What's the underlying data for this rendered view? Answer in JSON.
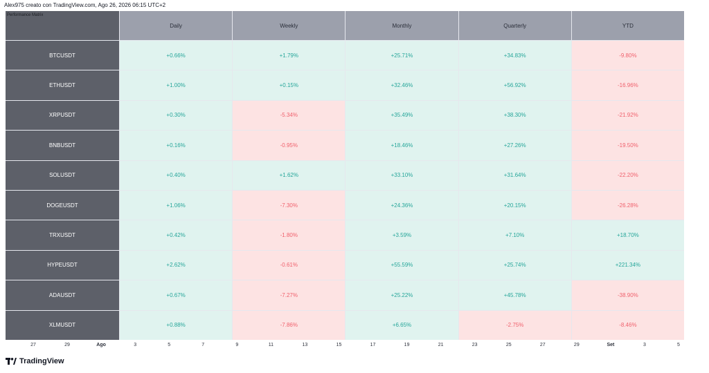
{
  "header": {
    "text": "Alex975 creato con TradingView.com, Ago 26, 2026 06:15 UTC+2"
  },
  "matrix": {
    "title": "Performance Matrix",
    "columns": [
      "Daily",
      "Weekly",
      "Monthly",
      "Quarterly",
      "YTD"
    ],
    "rows": [
      {
        "symbol": "BTCUSDT",
        "values": [
          "+0.66%",
          "+1.79%",
          "+25.71%",
          "+34.83%",
          "-9.80%"
        ]
      },
      {
        "symbol": "ETHUSDT",
        "values": [
          "+1.00%",
          "+0.15%",
          "+32.46%",
          "+56.92%",
          "-16.96%"
        ]
      },
      {
        "symbol": "XRPUSDT",
        "values": [
          "+0.30%",
          "-5.34%",
          "+35.49%",
          "+38.30%",
          "-21.92%"
        ]
      },
      {
        "symbol": "BNBUSDT",
        "values": [
          "+0.16%",
          "-0.95%",
          "+18.46%",
          "+27.26%",
          "-19.50%"
        ]
      },
      {
        "symbol": "SOLUSDT",
        "values": [
          "+0.40%",
          "+1.62%",
          "+33.10%",
          "+31.64%",
          "-22.20%"
        ]
      },
      {
        "symbol": "DOGEUSDT",
        "values": [
          "+1.06%",
          "-7.30%",
          "+24.36%",
          "+20.15%",
          "-26.28%"
        ]
      },
      {
        "symbol": "TRXUSDT",
        "values": [
          "+0.42%",
          "-1.80%",
          "+3.59%",
          "+7.10%",
          "+18.70%"
        ]
      },
      {
        "symbol": "HYPEUSDT",
        "values": [
          "+2.62%",
          "-0.61%",
          "+55.59%",
          "+25.74%",
          "+221.34%"
        ]
      },
      {
        "symbol": "ADAUSDT",
        "values": [
          "+0.67%",
          "-7.27%",
          "+25.22%",
          "+45.78%",
          "-38.90%"
        ]
      },
      {
        "symbol": "XLMUSDT",
        "values": [
          "+0.88%",
          "-7.86%",
          "+6.65%",
          "-2.75%",
          "-8.46%"
        ]
      }
    ]
  },
  "time_axis": {
    "ticks": [
      {
        "label": "27",
        "bold": false
      },
      {
        "label": "29",
        "bold": false
      },
      {
        "label": "Ago",
        "bold": true
      },
      {
        "label": "3",
        "bold": false
      },
      {
        "label": "5",
        "bold": false
      },
      {
        "label": "7",
        "bold": false
      },
      {
        "label": "9",
        "bold": false
      },
      {
        "label": "11",
        "bold": false
      },
      {
        "label": "13",
        "bold": false
      },
      {
        "label": "15",
        "bold": false
      },
      {
        "label": "17",
        "bold": false
      },
      {
        "label": "19",
        "bold": false
      },
      {
        "label": "21",
        "bold": false
      },
      {
        "label": "23",
        "bold": false
      },
      {
        "label": "25",
        "bold": false
      },
      {
        "label": "27",
        "bold": false
      },
      {
        "label": "29",
        "bold": false
      },
      {
        "label": "Set",
        "bold": true
      },
      {
        "label": "3",
        "bold": false
      },
      {
        "label": "5",
        "bold": false
      }
    ]
  },
  "footer": {
    "logo_text": "TradingView",
    "logo_icon": "tradingview-logo-icon"
  },
  "colors": {
    "positive": "#26a69a",
    "negative": "#f0616d",
    "positive_bg": "#e0f3ef",
    "negative_bg": "#fde3e3",
    "header_bg": "#9ca0ac",
    "row_header_bg": "#5d6069"
  }
}
